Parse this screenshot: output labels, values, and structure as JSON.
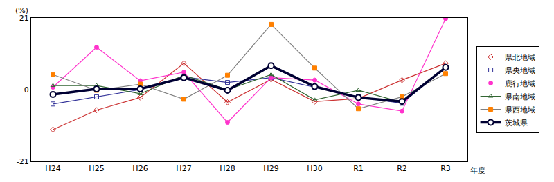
{
  "chart_data": {
    "type": "line",
    "y_label": "(%)",
    "x_label": "年度",
    "categories": [
      "H24",
      "H25",
      "H26",
      "H27",
      "H28",
      "H29",
      "H30",
      "R1",
      "R2",
      "R3"
    ],
    "ylim": [
      -21,
      21
    ],
    "yticks": [
      -21,
      0,
      21
    ],
    "grid": true,
    "legend": "right",
    "series": [
      {
        "name": "県北地域",
        "color": "#cc3333",
        "marker": "diamond-open",
        "line_style": "solid",
        "values": [
          -11.7,
          -6.0,
          -2.3,
          7.7,
          -3.7,
          3.0,
          -3.5,
          -2.6,
          2.8,
          7.7
        ]
      },
      {
        "name": "県央地域",
        "color": "#333399",
        "marker": "square-open",
        "line_style": "solid",
        "values": [
          -4.2,
          -2.1,
          0.0,
          3.7,
          2.1,
          3.5,
          0.7,
          -2.1,
          -4.0,
          6.5
        ]
      },
      {
        "name": "鹿行地域",
        "color": "#ff33cc",
        "marker": "circle",
        "line_style": "solid",
        "values": [
          0.7,
          12.4,
          2.6,
          5.1,
          -9.6,
          3.5,
          2.8,
          -4.2,
          -6.3,
          20.8
        ]
      },
      {
        "name": "県南地域",
        "color": "#336633",
        "marker": "triangle-up-open",
        "line_style": "solid",
        "values": [
          1.2,
          1.2,
          -1.2,
          4.2,
          0.0,
          4.4,
          -3.0,
          -0.2,
          -3.7,
          6.3
        ]
      },
      {
        "name": "県西地域",
        "color": "#ff8000",
        "marker": "square",
        "line_style": "solid",
        "values": [
          4.4,
          -0.2,
          1.6,
          -2.8,
          4.2,
          19.1,
          6.3,
          -5.6,
          -2.1,
          4.7
        ]
      },
      {
        "name": "茨城県",
        "color": "#000033",
        "marker": "circle-open",
        "line_style": "bold",
        "values": [
          -1.4,
          0.2,
          0.2,
          3.5,
          -0.2,
          7.0,
          0.9,
          -2.3,
          -3.5,
          6.5
        ]
      }
    ]
  }
}
